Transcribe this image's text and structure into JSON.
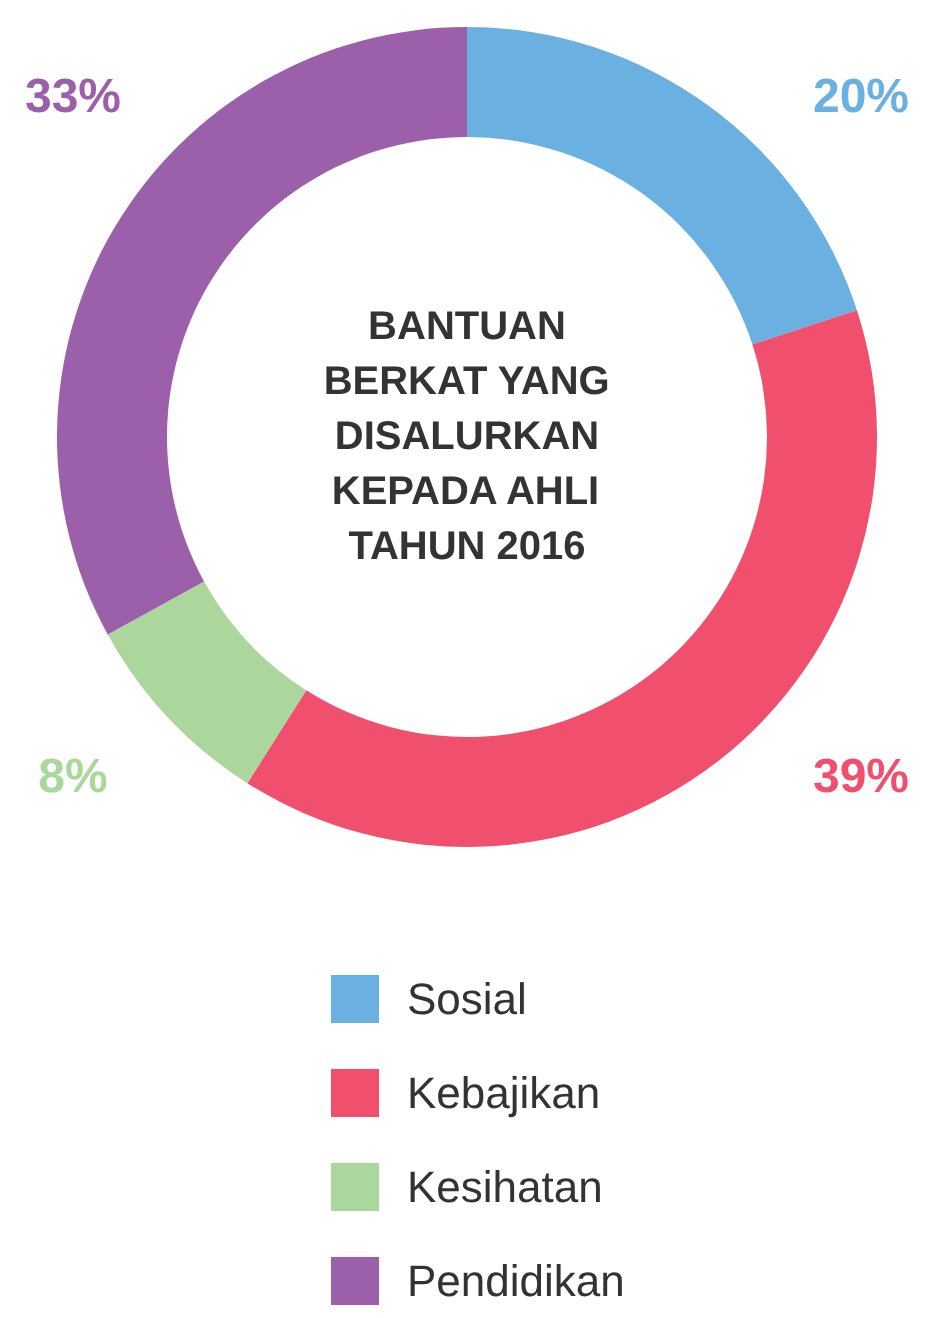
{
  "chart_data": {
    "type": "donut",
    "title": "BANTUAN BERKAT YANG DISALURKAN KEPADA AHLI TAHUN 2016",
    "categories": [
      "Sosial",
      "Kebajikan",
      "Kesihatan",
      "Pendidikan"
    ],
    "values": [
      20,
      39,
      8,
      33
    ],
    "colors": [
      "#6ab0e0",
      "#f0506e",
      "#acd79c",
      "#9b60a9"
    ],
    "value_labels": [
      "20%",
      "39%",
      "8%",
      "33%"
    ],
    "legend": "bottom"
  }
}
